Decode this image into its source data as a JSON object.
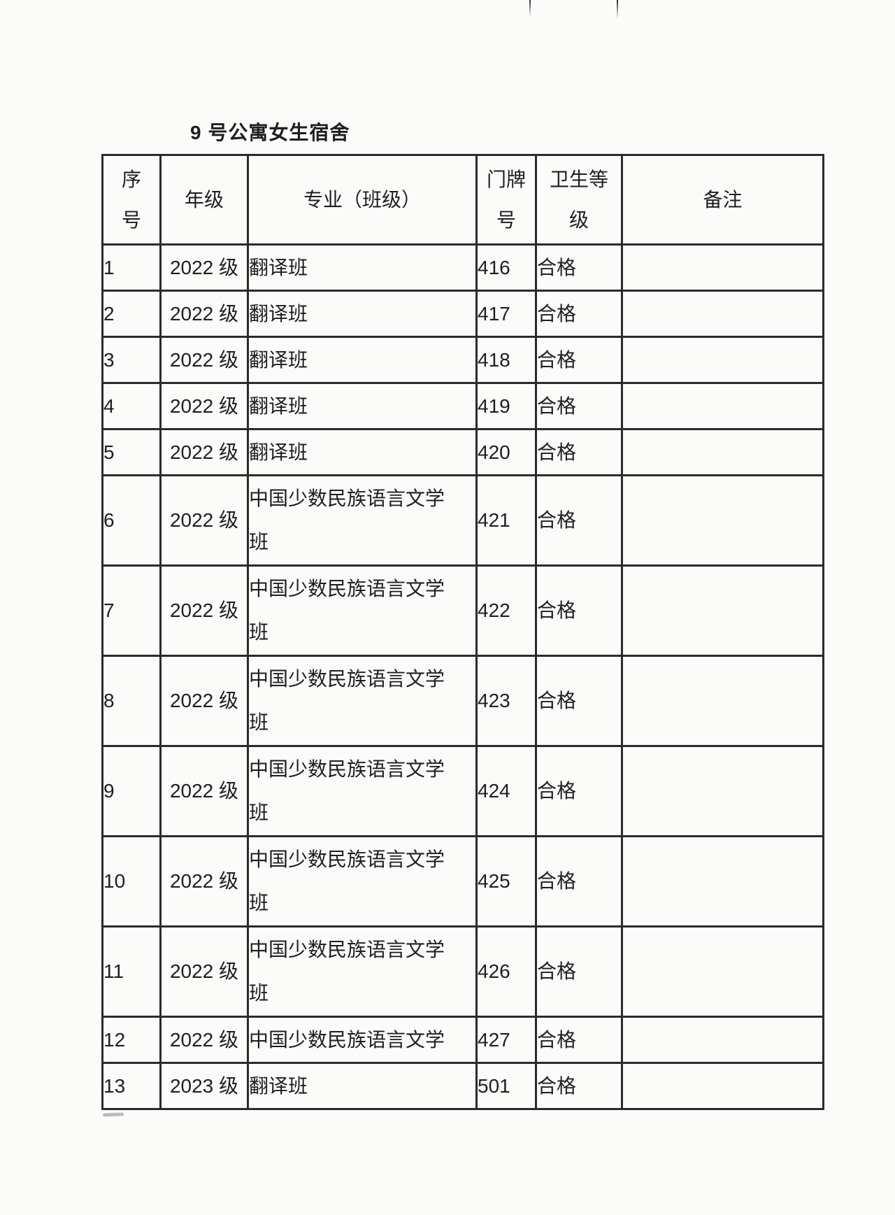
{
  "page": {
    "title": "9 号公寓女生宿舍"
  },
  "colors": {
    "text": "#1e1e1e",
    "border": "#2b2b2b",
    "background": "#fbfbfa"
  },
  "table": {
    "headers": {
      "no": [
        "序",
        "号"
      ],
      "grade": [
        "年级"
      ],
      "major": [
        "专业（班级）"
      ],
      "room": [
        "门牌",
        "号"
      ],
      "rating": [
        "卫生等",
        "级"
      ],
      "remark": [
        "备注"
      ]
    },
    "rows": [
      {
        "no": "1",
        "grade": "2022 级",
        "major_lines": [
          "翻译班"
        ],
        "room": "416",
        "rating": "合格",
        "remark": ""
      },
      {
        "no": "2",
        "grade": "2022 级",
        "major_lines": [
          "翻译班"
        ],
        "room": "417",
        "rating": "合格",
        "remark": ""
      },
      {
        "no": "3",
        "grade": "2022 级",
        "major_lines": [
          "翻译班"
        ],
        "room": "418",
        "rating": "合格",
        "remark": ""
      },
      {
        "no": "4",
        "grade": "2022 级",
        "major_lines": [
          "翻译班"
        ],
        "room": "419",
        "rating": "合格",
        "remark": ""
      },
      {
        "no": "5",
        "grade": "2022 级",
        "major_lines": [
          "翻译班"
        ],
        "room": "420",
        "rating": "合格",
        "remark": ""
      },
      {
        "no": "6",
        "grade": "2022 级",
        "major_lines": [
          "中国少数民族语言文学",
          "班"
        ],
        "room": "421",
        "rating": "合格",
        "remark": ""
      },
      {
        "no": "7",
        "grade": "2022 级",
        "major_lines": [
          "中国少数民族语言文学",
          "班"
        ],
        "room": "422",
        "rating": "合格",
        "remark": ""
      },
      {
        "no": "8",
        "grade": "2022 级",
        "major_lines": [
          "中国少数民族语言文学",
          "班"
        ],
        "room": "423",
        "rating": "合格",
        "remark": ""
      },
      {
        "no": "9",
        "grade": "2022 级",
        "major_lines": [
          "中国少数民族语言文学",
          "班"
        ],
        "room": "424",
        "rating": "合格",
        "remark": ""
      },
      {
        "no": "10",
        "grade": "2022 级",
        "major_lines": [
          "中国少数民族语言文学",
          "班"
        ],
        "room": "425",
        "rating": "合格",
        "remark": ""
      },
      {
        "no": "11",
        "grade": "2022 级",
        "major_lines": [
          "中国少数民族语言文学",
          "班"
        ],
        "room": "426",
        "rating": "合格",
        "remark": ""
      },
      {
        "no": "12",
        "grade": "2022 级",
        "major_lines": [
          "中国少数民族语言文学"
        ],
        "room": "427",
        "rating": "合格",
        "remark": ""
      },
      {
        "no": "13",
        "grade": "2023 级",
        "major_lines": [
          "翻译班"
        ],
        "room": "501",
        "rating": "合格",
        "remark": ""
      }
    ]
  }
}
